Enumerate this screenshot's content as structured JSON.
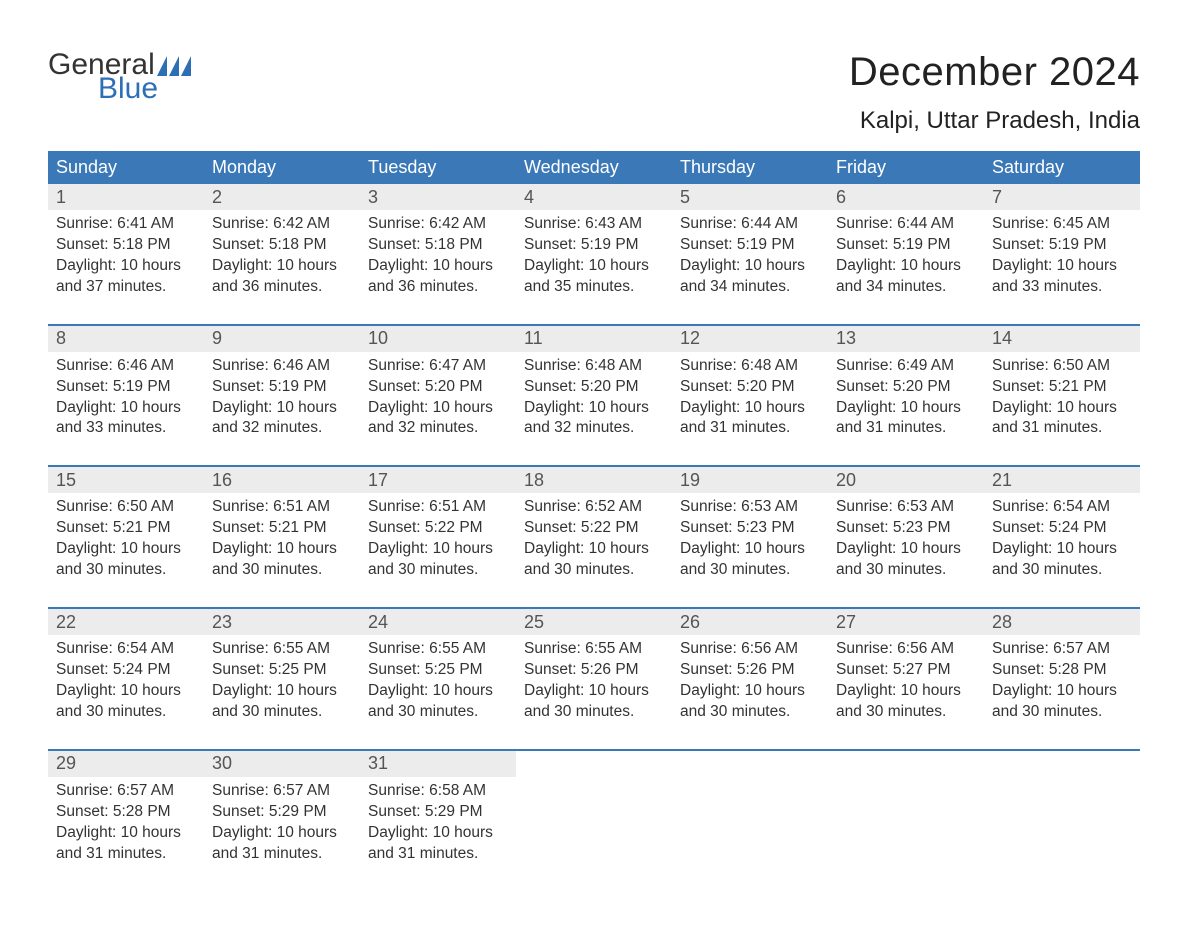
{
  "logo": {
    "text_top": "General",
    "text_bottom": "Blue",
    "flag_color": "#2d6fb5"
  },
  "title": "December 2024",
  "location": "Kalpi, Uttar Pradesh, India",
  "colors": {
    "header_bg": "#3a78b7",
    "header_text": "#ffffff",
    "daynum_bg": "#ececec",
    "daynum_text": "#555555",
    "body_text": "#333333",
    "rule": "#3a78b7",
    "logo_blue": "#2d6fb5",
    "page_bg": "#ffffff"
  },
  "typography": {
    "title_fontsize": 40,
    "location_fontsize": 24,
    "dow_fontsize": 18,
    "daynum_fontsize": 18,
    "detail_fontsize": 15.5,
    "font_family": "Arial"
  },
  "days_of_week": [
    "Sunday",
    "Monday",
    "Tuesday",
    "Wednesday",
    "Thursday",
    "Friday",
    "Saturday"
  ],
  "labels": {
    "sunrise": "Sunrise:",
    "sunset": "Sunset:",
    "daylight": "Daylight:"
  },
  "weeks": [
    [
      {
        "n": "1",
        "sunrise": "6:41 AM",
        "sunset": "5:18 PM",
        "daylight_l1": "10 hours",
        "daylight_l2": "and 37 minutes."
      },
      {
        "n": "2",
        "sunrise": "6:42 AM",
        "sunset": "5:18 PM",
        "daylight_l1": "10 hours",
        "daylight_l2": "and 36 minutes."
      },
      {
        "n": "3",
        "sunrise": "6:42 AM",
        "sunset": "5:18 PM",
        "daylight_l1": "10 hours",
        "daylight_l2": "and 36 minutes."
      },
      {
        "n": "4",
        "sunrise": "6:43 AM",
        "sunset": "5:19 PM",
        "daylight_l1": "10 hours",
        "daylight_l2": "and 35 minutes."
      },
      {
        "n": "5",
        "sunrise": "6:44 AM",
        "sunset": "5:19 PM",
        "daylight_l1": "10 hours",
        "daylight_l2": "and 34 minutes."
      },
      {
        "n": "6",
        "sunrise": "6:44 AM",
        "sunset": "5:19 PM",
        "daylight_l1": "10 hours",
        "daylight_l2": "and 34 minutes."
      },
      {
        "n": "7",
        "sunrise": "6:45 AM",
        "sunset": "5:19 PM",
        "daylight_l1": "10 hours",
        "daylight_l2": "and 33 minutes."
      }
    ],
    [
      {
        "n": "8",
        "sunrise": "6:46 AM",
        "sunset": "5:19 PM",
        "daylight_l1": "10 hours",
        "daylight_l2": "and 33 minutes."
      },
      {
        "n": "9",
        "sunrise": "6:46 AM",
        "sunset": "5:19 PM",
        "daylight_l1": "10 hours",
        "daylight_l2": "and 32 minutes."
      },
      {
        "n": "10",
        "sunrise": "6:47 AM",
        "sunset": "5:20 PM",
        "daylight_l1": "10 hours",
        "daylight_l2": "and 32 minutes."
      },
      {
        "n": "11",
        "sunrise": "6:48 AM",
        "sunset": "5:20 PM",
        "daylight_l1": "10 hours",
        "daylight_l2": "and 32 minutes."
      },
      {
        "n": "12",
        "sunrise": "6:48 AM",
        "sunset": "5:20 PM",
        "daylight_l1": "10 hours",
        "daylight_l2": "and 31 minutes."
      },
      {
        "n": "13",
        "sunrise": "6:49 AM",
        "sunset": "5:20 PM",
        "daylight_l1": "10 hours",
        "daylight_l2": "and 31 minutes."
      },
      {
        "n": "14",
        "sunrise": "6:50 AM",
        "sunset": "5:21 PM",
        "daylight_l1": "10 hours",
        "daylight_l2": "and 31 minutes."
      }
    ],
    [
      {
        "n": "15",
        "sunrise": "6:50 AM",
        "sunset": "5:21 PM",
        "daylight_l1": "10 hours",
        "daylight_l2": "and 30 minutes."
      },
      {
        "n": "16",
        "sunrise": "6:51 AM",
        "sunset": "5:21 PM",
        "daylight_l1": "10 hours",
        "daylight_l2": "and 30 minutes."
      },
      {
        "n": "17",
        "sunrise": "6:51 AM",
        "sunset": "5:22 PM",
        "daylight_l1": "10 hours",
        "daylight_l2": "and 30 minutes."
      },
      {
        "n": "18",
        "sunrise": "6:52 AM",
        "sunset": "5:22 PM",
        "daylight_l1": "10 hours",
        "daylight_l2": "and 30 minutes."
      },
      {
        "n": "19",
        "sunrise": "6:53 AM",
        "sunset": "5:23 PM",
        "daylight_l1": "10 hours",
        "daylight_l2": "and 30 minutes."
      },
      {
        "n": "20",
        "sunrise": "6:53 AM",
        "sunset": "5:23 PM",
        "daylight_l1": "10 hours",
        "daylight_l2": "and 30 minutes."
      },
      {
        "n": "21",
        "sunrise": "6:54 AM",
        "sunset": "5:24 PM",
        "daylight_l1": "10 hours",
        "daylight_l2": "and 30 minutes."
      }
    ],
    [
      {
        "n": "22",
        "sunrise": "6:54 AM",
        "sunset": "5:24 PM",
        "daylight_l1": "10 hours",
        "daylight_l2": "and 30 minutes."
      },
      {
        "n": "23",
        "sunrise": "6:55 AM",
        "sunset": "5:25 PM",
        "daylight_l1": "10 hours",
        "daylight_l2": "and 30 minutes."
      },
      {
        "n": "24",
        "sunrise": "6:55 AM",
        "sunset": "5:25 PM",
        "daylight_l1": "10 hours",
        "daylight_l2": "and 30 minutes."
      },
      {
        "n": "25",
        "sunrise": "6:55 AM",
        "sunset": "5:26 PM",
        "daylight_l1": "10 hours",
        "daylight_l2": "and 30 minutes."
      },
      {
        "n": "26",
        "sunrise": "6:56 AM",
        "sunset": "5:26 PM",
        "daylight_l1": "10 hours",
        "daylight_l2": "and 30 minutes."
      },
      {
        "n": "27",
        "sunrise": "6:56 AM",
        "sunset": "5:27 PM",
        "daylight_l1": "10 hours",
        "daylight_l2": "and 30 minutes."
      },
      {
        "n": "28",
        "sunrise": "6:57 AM",
        "sunset": "5:28 PM",
        "daylight_l1": "10 hours",
        "daylight_l2": "and 30 minutes."
      }
    ],
    [
      {
        "n": "29",
        "sunrise": "6:57 AM",
        "sunset": "5:28 PM",
        "daylight_l1": "10 hours",
        "daylight_l2": "and 31 minutes."
      },
      {
        "n": "30",
        "sunrise": "6:57 AM",
        "sunset": "5:29 PM",
        "daylight_l1": "10 hours",
        "daylight_l2": "and 31 minutes."
      },
      {
        "n": "31",
        "sunrise": "6:58 AM",
        "sunset": "5:29 PM",
        "daylight_l1": "10 hours",
        "daylight_l2": "and 31 minutes."
      },
      null,
      null,
      null,
      null
    ]
  ]
}
